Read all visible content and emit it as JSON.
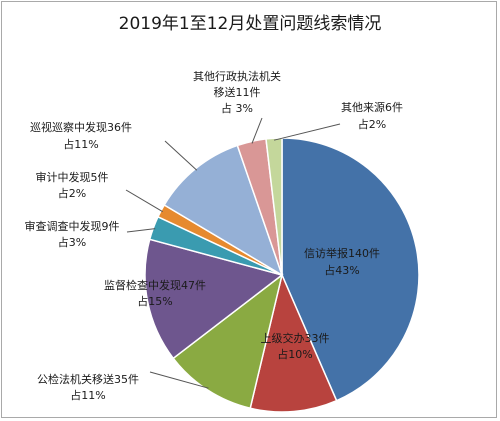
{
  "chart_data": {
    "type": "pie",
    "title": "2019年1至12月处置问题线索情况",
    "slices": [
      {
        "name": "信访举报",
        "label": "信访举报140件",
        "value": 140,
        "percent_label": "占43%",
        "color": "#4472a8"
      },
      {
        "name": "上级交办",
        "label": "上级交办33件",
        "value": 33,
        "percent_label": "占10%",
        "color": "#b8433e"
      },
      {
        "name": "公检法机关移送",
        "label": "公检法机关移送35件",
        "value": 35,
        "percent_label": "占11%",
        "color": "#8aaa42"
      },
      {
        "name": "监督检查中发现",
        "label": "监督检查中发现47件",
        "value": 47,
        "percent_label": "占15%",
        "color": "#6e568e"
      },
      {
        "name": "审查调查中发现",
        "label": "审查调查中发现9件",
        "value": 9,
        "percent_label": "占3%",
        "color": "#3a9bb0"
      },
      {
        "name": "审计中发现",
        "label": "审计中发现5件",
        "value": 5,
        "percent_label": "占2%",
        "color": "#e68a2f"
      },
      {
        "name": "巡视巡察中发现",
        "label": "巡视巡察中发现36件",
        "value": 36,
        "percent_label": "占11%",
        "color": "#95b0d6"
      },
      {
        "name": "其他行政执法机关移送",
        "label_lines": [
          "其他行政执法机关",
          "移送11件"
        ],
        "value": 11,
        "percent_label": "占 3%",
        "color": "#d99796"
      },
      {
        "name": "其他来源",
        "label": "其他来源6件",
        "value": 6,
        "percent_label": "占2%",
        "color": "#c4d79b"
      }
    ]
  }
}
